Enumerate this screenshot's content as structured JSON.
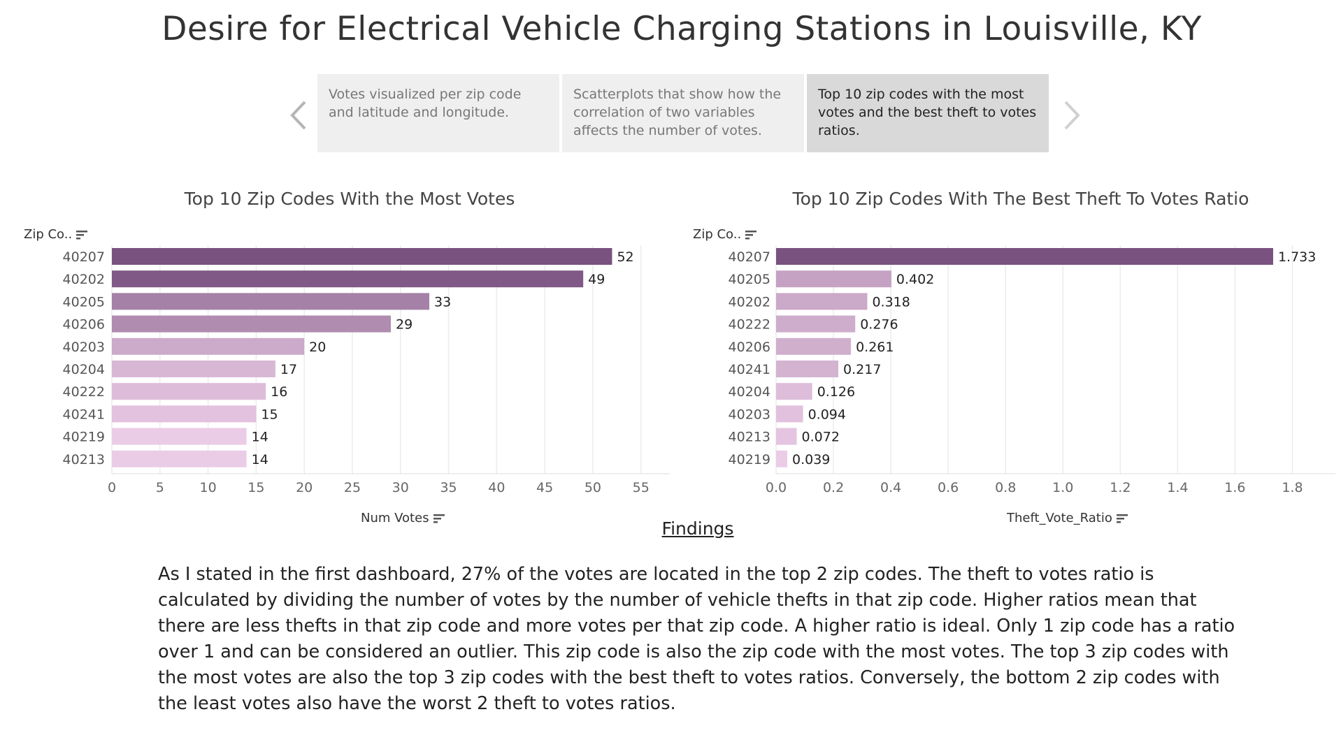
{
  "page": {
    "title": "Desire for Electrical Vehicle Charging Stations in Louisville, KY"
  },
  "story_points": [
    {
      "label": "Votes visualized per zip code and latitude and longitude.",
      "active": false
    },
    {
      "label": "Scatterplots that show how the correlation of two variables affects the number of votes.",
      "active": false
    },
    {
      "label": "Top 10 zip codes with the most votes and the best theft to votes ratios.",
      "active": true
    }
  ],
  "icons": {
    "prev": "chevron-left-icon",
    "next": "chevron-right-icon",
    "sort": "sort-descending-icon"
  },
  "chart_data": [
    {
      "type": "bar",
      "orientation": "horizontal",
      "title": "Top 10 Zip Codes With the Most Votes",
      "ylabel": "Zip Co..",
      "xlabel": "Num Votes",
      "categories": [
        "40207",
        "40202",
        "40205",
        "40206",
        "40203",
        "40204",
        "40222",
        "40241",
        "40219",
        "40213"
      ],
      "values": [
        52,
        49,
        33,
        29,
        20,
        17,
        16,
        15,
        14,
        14
      ],
      "value_labels": [
        "52",
        "49",
        "33",
        "29",
        "20",
        "17",
        "16",
        "15",
        "14",
        "14"
      ],
      "xlim": [
        0,
        58
      ],
      "xticks": [
        0,
        5,
        10,
        15,
        20,
        25,
        30,
        35,
        40,
        45,
        50,
        55
      ],
      "xtick_labels": [
        "0",
        "5",
        "10",
        "15",
        "20",
        "25",
        "30",
        "35",
        "40",
        "45",
        "50",
        "55"
      ],
      "grid": true,
      "color_range": [
        "#ebcce6",
        "#7a5280"
      ]
    },
    {
      "type": "bar",
      "orientation": "horizontal",
      "title": "Top 10 Zip Codes With The Best Theft To Votes Ratio",
      "ylabel": "Zip Co..",
      "xlabel": "Theft_Vote_Ratio",
      "categories": [
        "40207",
        "40205",
        "40202",
        "40222",
        "40206",
        "40241",
        "40204",
        "40203",
        "40213",
        "40219"
      ],
      "values": [
        1.733,
        0.402,
        0.318,
        0.276,
        0.261,
        0.217,
        0.126,
        0.094,
        0.072,
        0.039
      ],
      "value_labels": [
        "1.733",
        "0.402",
        "0.318",
        "0.276",
        "0.261",
        "0.217",
        "0.126",
        "0.094",
        "0.072",
        "0.039"
      ],
      "xlim": [
        0,
        1.95
      ],
      "xticks": [
        0,
        0.2,
        0.4,
        0.6,
        0.8,
        1.0,
        1.2,
        1.4,
        1.6,
        1.8
      ],
      "xtick_labels": [
        "0.0",
        "0.2",
        "0.4",
        "0.6",
        "0.8",
        "1.0",
        "1.2",
        "1.4",
        "1.6",
        "1.8"
      ],
      "grid": true,
      "color_range": [
        "#ebcce6",
        "#7a5280"
      ]
    }
  ],
  "findings": {
    "heading": "Findings",
    "text": "As I stated in the first dashboard, 27% of the votes are located in the top 2 zip codes. The theft to votes ratio is calculated by dividing the number of votes by the number of vehicle thefts in that zip code. Higher ratios mean that there are less thefts in that zip code and more votes per that zip code. A higher ratio is ideal. Only 1 zip code has a ratio over 1 and can be considered an outlier. This zip code is also the zip code with the most votes. The top 3 zip codes with the most votes are also the top 3 zip codes with the best theft to votes ratios. Conversely, the bottom 2 zip codes with the least votes also have the worst 2 theft to votes ratios."
  }
}
